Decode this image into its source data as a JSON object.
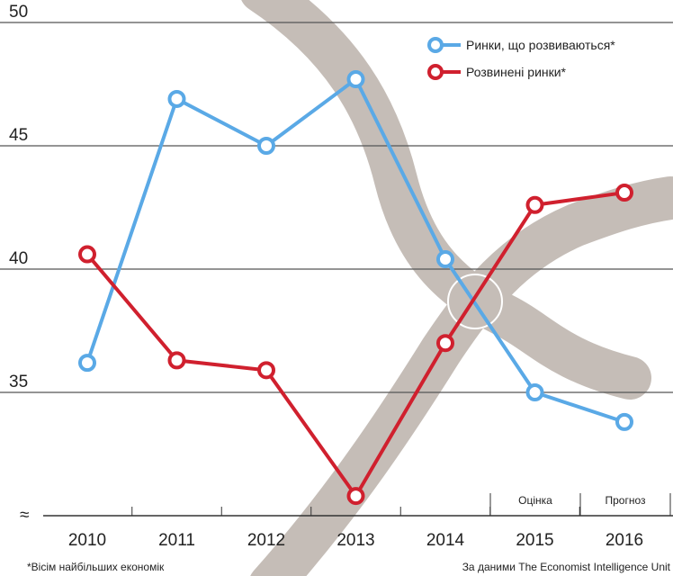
{
  "chart_data": {
    "type": "line",
    "categories": [
      "2010",
      "2011",
      "2012",
      "2013",
      "2014",
      "2015",
      "2016"
    ],
    "series": [
      {
        "name": "Ринки, що розвиваються*",
        "color": "#5aa9e6",
        "values": [
          36.2,
          46.9,
          45.0,
          47.7,
          40.4,
          35.0,
          33.8
        ]
      },
      {
        "name": "Розвинені ринки*",
        "color": "#d0202e",
        "values": [
          40.6,
          36.3,
          35.9,
          30.8,
          37.0,
          42.6,
          43.1
        ]
      }
    ],
    "ylim": [
      30,
      50
    ],
    "yticks": [
      35,
      40,
      45,
      50
    ],
    "grid": true,
    "period_labels": [
      "Оцінка",
      "Прогноз"
    ],
    "footnote": "*Вісім найбільших економік",
    "source": "За даними The Economist Intelligence Unit"
  }
}
